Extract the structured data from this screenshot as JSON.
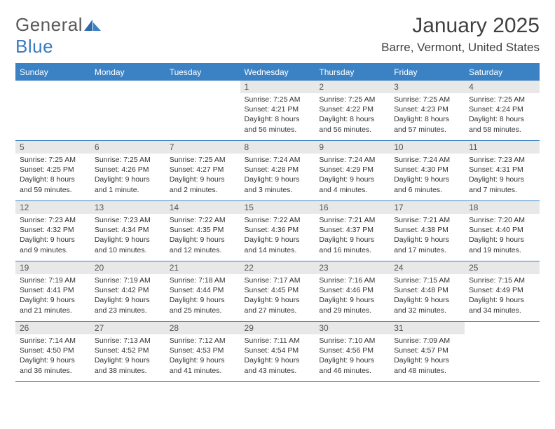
{
  "logo": {
    "text1": "General",
    "text2": "Blue"
  },
  "title": "January 2025",
  "location": "Barre, Vermont, United States",
  "colors": {
    "header_bg": "#3b82c4",
    "daynum_bg": "#e8e8e8",
    "border": "#3b82c4"
  },
  "weekdays": [
    "Sunday",
    "Monday",
    "Tuesday",
    "Wednesday",
    "Thursday",
    "Friday",
    "Saturday"
  ],
  "weeks": [
    [
      null,
      null,
      null,
      {
        "n": "1",
        "sr": "7:25 AM",
        "ss": "4:21 PM",
        "dl": "8 hours and 56 minutes."
      },
      {
        "n": "2",
        "sr": "7:25 AM",
        "ss": "4:22 PM",
        "dl": "8 hours and 56 minutes."
      },
      {
        "n": "3",
        "sr": "7:25 AM",
        "ss": "4:23 PM",
        "dl": "8 hours and 57 minutes."
      },
      {
        "n": "4",
        "sr": "7:25 AM",
        "ss": "4:24 PM",
        "dl": "8 hours and 58 minutes."
      }
    ],
    [
      {
        "n": "5",
        "sr": "7:25 AM",
        "ss": "4:25 PM",
        "dl": "8 hours and 59 minutes."
      },
      {
        "n": "6",
        "sr": "7:25 AM",
        "ss": "4:26 PM",
        "dl": "9 hours and 1 minute."
      },
      {
        "n": "7",
        "sr": "7:25 AM",
        "ss": "4:27 PM",
        "dl": "9 hours and 2 minutes."
      },
      {
        "n": "8",
        "sr": "7:24 AM",
        "ss": "4:28 PM",
        "dl": "9 hours and 3 minutes."
      },
      {
        "n": "9",
        "sr": "7:24 AM",
        "ss": "4:29 PM",
        "dl": "9 hours and 4 minutes."
      },
      {
        "n": "10",
        "sr": "7:24 AM",
        "ss": "4:30 PM",
        "dl": "9 hours and 6 minutes."
      },
      {
        "n": "11",
        "sr": "7:23 AM",
        "ss": "4:31 PM",
        "dl": "9 hours and 7 minutes."
      }
    ],
    [
      {
        "n": "12",
        "sr": "7:23 AM",
        "ss": "4:32 PM",
        "dl": "9 hours and 9 minutes."
      },
      {
        "n": "13",
        "sr": "7:23 AM",
        "ss": "4:34 PM",
        "dl": "9 hours and 10 minutes."
      },
      {
        "n": "14",
        "sr": "7:22 AM",
        "ss": "4:35 PM",
        "dl": "9 hours and 12 minutes."
      },
      {
        "n": "15",
        "sr": "7:22 AM",
        "ss": "4:36 PM",
        "dl": "9 hours and 14 minutes."
      },
      {
        "n": "16",
        "sr": "7:21 AM",
        "ss": "4:37 PM",
        "dl": "9 hours and 16 minutes."
      },
      {
        "n": "17",
        "sr": "7:21 AM",
        "ss": "4:38 PM",
        "dl": "9 hours and 17 minutes."
      },
      {
        "n": "18",
        "sr": "7:20 AM",
        "ss": "4:40 PM",
        "dl": "9 hours and 19 minutes."
      }
    ],
    [
      {
        "n": "19",
        "sr": "7:19 AM",
        "ss": "4:41 PM",
        "dl": "9 hours and 21 minutes."
      },
      {
        "n": "20",
        "sr": "7:19 AM",
        "ss": "4:42 PM",
        "dl": "9 hours and 23 minutes."
      },
      {
        "n": "21",
        "sr": "7:18 AM",
        "ss": "4:44 PM",
        "dl": "9 hours and 25 minutes."
      },
      {
        "n": "22",
        "sr": "7:17 AM",
        "ss": "4:45 PM",
        "dl": "9 hours and 27 minutes."
      },
      {
        "n": "23",
        "sr": "7:16 AM",
        "ss": "4:46 PM",
        "dl": "9 hours and 29 minutes."
      },
      {
        "n": "24",
        "sr": "7:15 AM",
        "ss": "4:48 PM",
        "dl": "9 hours and 32 minutes."
      },
      {
        "n": "25",
        "sr": "7:15 AM",
        "ss": "4:49 PM",
        "dl": "9 hours and 34 minutes."
      }
    ],
    [
      {
        "n": "26",
        "sr": "7:14 AM",
        "ss": "4:50 PM",
        "dl": "9 hours and 36 minutes."
      },
      {
        "n": "27",
        "sr": "7:13 AM",
        "ss": "4:52 PM",
        "dl": "9 hours and 38 minutes."
      },
      {
        "n": "28",
        "sr": "7:12 AM",
        "ss": "4:53 PM",
        "dl": "9 hours and 41 minutes."
      },
      {
        "n": "29",
        "sr": "7:11 AM",
        "ss": "4:54 PM",
        "dl": "9 hours and 43 minutes."
      },
      {
        "n": "30",
        "sr": "7:10 AM",
        "ss": "4:56 PM",
        "dl": "9 hours and 46 minutes."
      },
      {
        "n": "31",
        "sr": "7:09 AM",
        "ss": "4:57 PM",
        "dl": "9 hours and 48 minutes."
      },
      null
    ]
  ],
  "labels": {
    "sunrise": "Sunrise:",
    "sunset": "Sunset:",
    "daylight": "Daylight:"
  }
}
